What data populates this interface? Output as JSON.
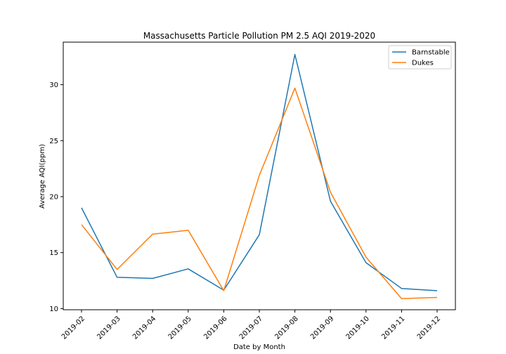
{
  "chart_data": {
    "type": "line",
    "title": "Massachusetts Particle Pollution PM 2.5 AQI 2019-2020",
    "xlabel": "Date by Month",
    "ylabel": "Average AQI(ppm)",
    "categories": [
      "2019-02",
      "2019-03",
      "2019-04",
      "2019-05",
      "2019-06",
      "2019-07",
      "2019-08",
      "2019-09",
      "2019-10",
      "2019-11",
      "2019-12"
    ],
    "yticks": [
      10,
      15,
      20,
      25,
      30
    ],
    "ylim": [
      9.9,
      33.8
    ],
    "grid": false,
    "legend_position": "top-right",
    "series": [
      {
        "name": "Barnstable",
        "color": "#1f77b4",
        "values": [
          19.0,
          12.8,
          12.7,
          13.55,
          11.65,
          16.6,
          32.7,
          19.6,
          14.1,
          11.8,
          11.6
        ]
      },
      {
        "name": "Dukes",
        "color": "#ff7f0e",
        "values": [
          17.5,
          13.5,
          16.65,
          17.0,
          11.6,
          21.9,
          29.7,
          20.4,
          14.6,
          10.9,
          11.0
        ]
      }
    ]
  }
}
